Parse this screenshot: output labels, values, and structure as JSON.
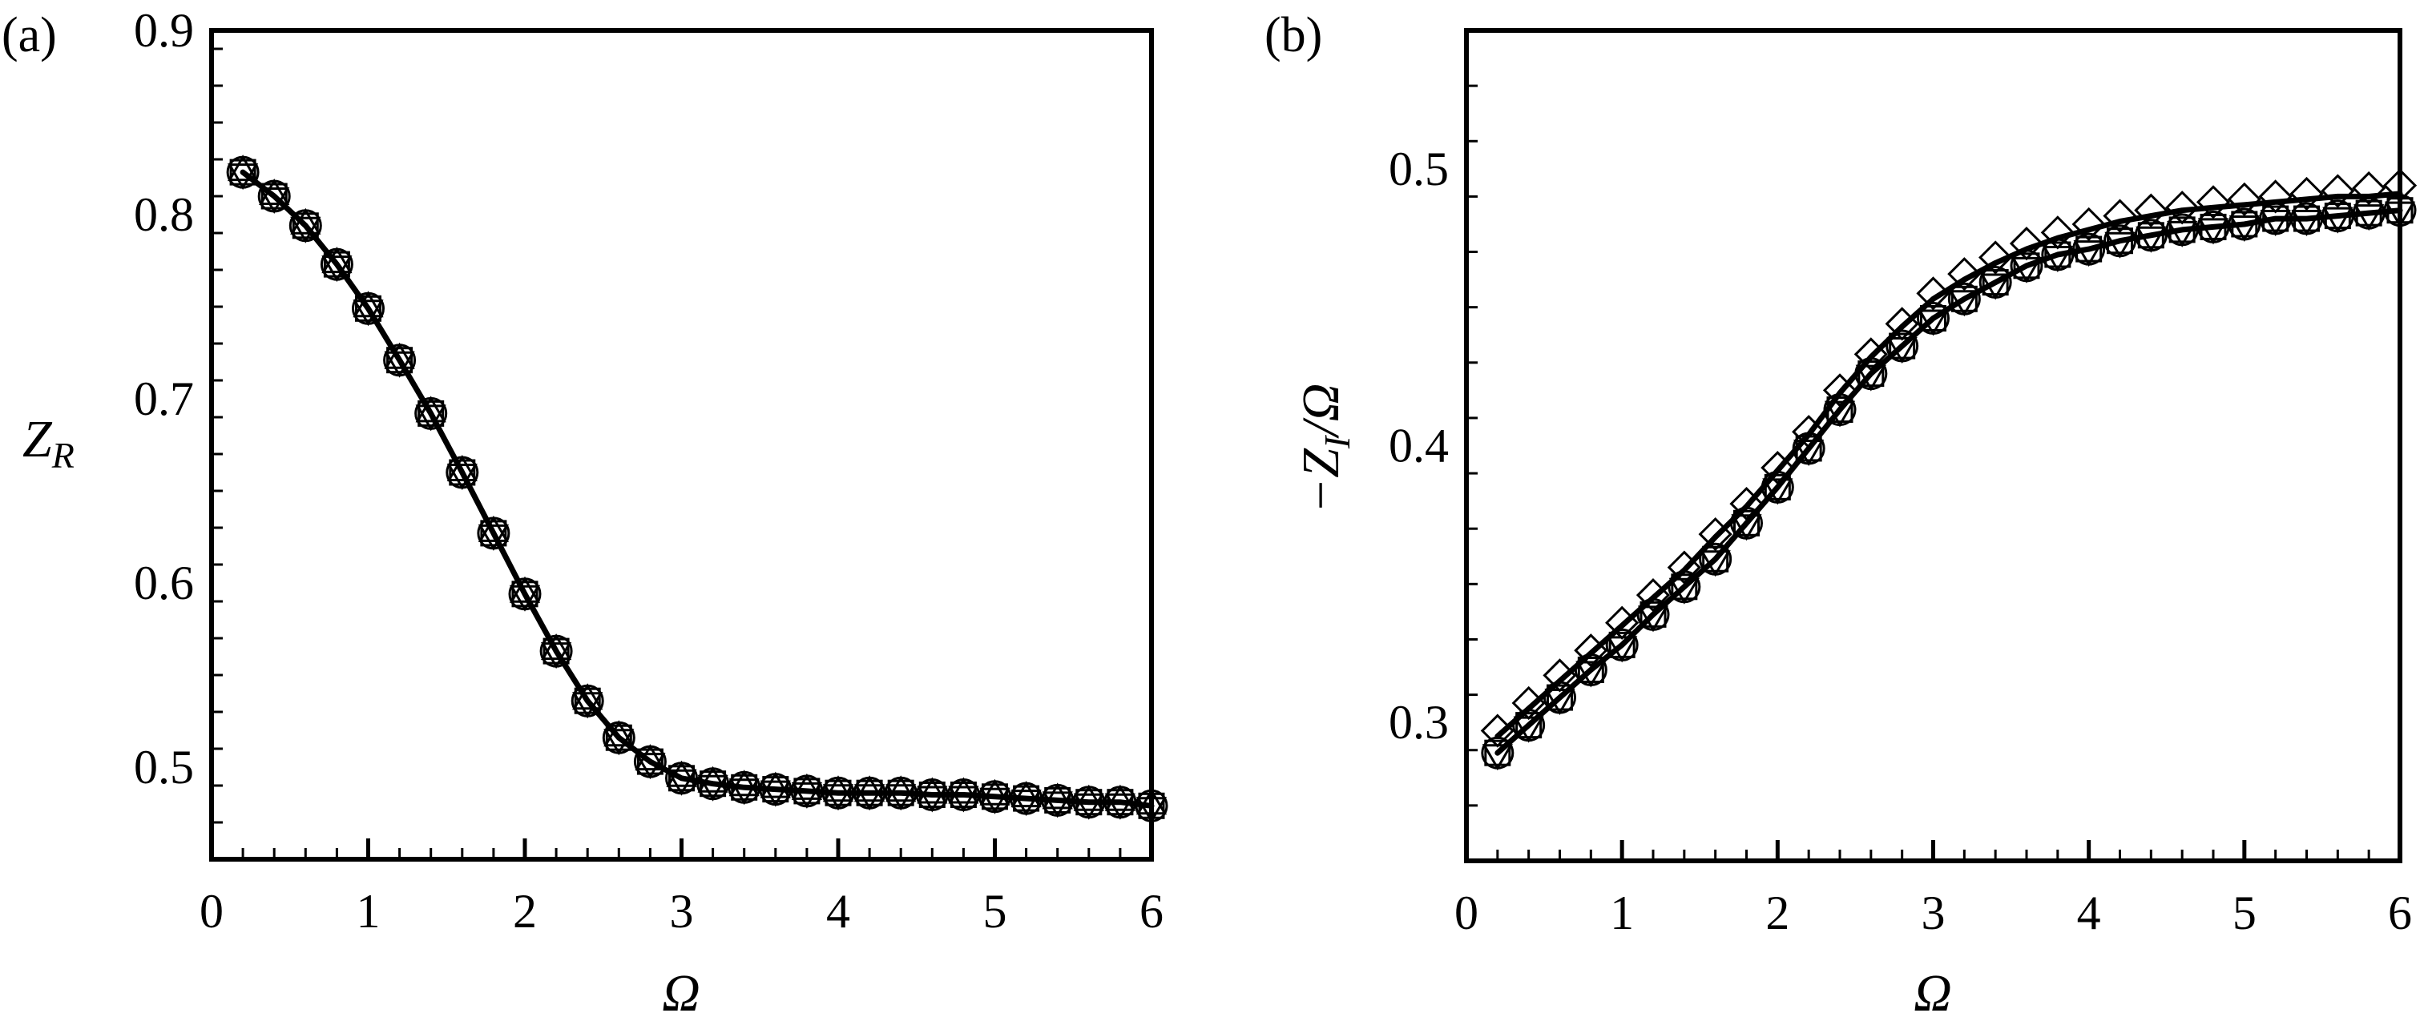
{
  "chart_data": [
    {
      "type": "line",
      "panel_label": "(a)",
      "xlabel": "Ω",
      "ylabel": "Z",
      "ylabel_sub": "R",
      "xlim": [
        0,
        6
      ],
      "ylim": [
        0.45,
        0.9
      ],
      "xticks": [
        "0",
        "1",
        "2",
        "3",
        "4",
        "5",
        "6"
      ],
      "yticks": [
        "0.5",
        "0.6",
        "0.7",
        "0.8",
        "0.9"
      ],
      "x_minor_step": 0.2,
      "y_minor_step": 0.02,
      "grid": false,
      "x": [
        0.2,
        0.4,
        0.6,
        0.8,
        1.0,
        1.2,
        1.4,
        1.6,
        1.8,
        2.0,
        2.2,
        2.4,
        2.6,
        2.8,
        3.0,
        3.2,
        3.4,
        3.6,
        3.8,
        4.0,
        4.2,
        4.4,
        4.6,
        4.8,
        5.0,
        5.2,
        5.4,
        5.6,
        5.8,
        6.0
      ],
      "series": [
        {
          "style": "line",
          "color": "#000000",
          "values": [
            0.823,
            0.81,
            0.794,
            0.773,
            0.749,
            0.721,
            0.692,
            0.66,
            0.627,
            0.594,
            0.563,
            0.536,
            0.516,
            0.503,
            0.494,
            0.491,
            0.489,
            0.488,
            0.487,
            0.486,
            0.486,
            0.486,
            0.485,
            0.485,
            0.484,
            0.483,
            0.482,
            0.481,
            0.481,
            0.479
          ]
        },
        {
          "style": "markers",
          "markers": [
            "circle",
            "square",
            "triangle-up",
            "triangle-down"
          ],
          "color": "#000000",
          "values": [
            0.823,
            0.81,
            0.794,
            0.773,
            0.749,
            0.721,
            0.692,
            0.66,
            0.627,
            0.594,
            0.563,
            0.536,
            0.516,
            0.503,
            0.494,
            0.491,
            0.489,
            0.488,
            0.487,
            0.486,
            0.486,
            0.486,
            0.485,
            0.485,
            0.484,
            0.483,
            0.482,
            0.481,
            0.481,
            0.479
          ]
        }
      ]
    },
    {
      "type": "line",
      "panel_label": "(b)",
      "xlabel": "Ω",
      "ylabel": "−Z",
      "ylabel_sub": "I",
      "ylabel_tail": "/Ω",
      "xlim": [
        0,
        6
      ],
      "ylim": [
        0.25,
        0.55
      ],
      "xticks": [
        "0",
        "1",
        "2",
        "3",
        "4",
        "5",
        "6"
      ],
      "yticks": [
        "0.3",
        "0.4",
        "0.5"
      ],
      "x_minor_step": 0.2,
      "y_minor_step": 0.02,
      "grid": false,
      "x": [
        0.2,
        0.4,
        0.6,
        0.8,
        1.0,
        1.2,
        1.4,
        1.6,
        1.8,
        2.0,
        2.2,
        2.4,
        2.6,
        2.8,
        3.0,
        3.2,
        3.4,
        3.6,
        3.8,
        4.0,
        4.2,
        4.4,
        4.6,
        4.8,
        5.0,
        5.2,
        5.4,
        5.6,
        5.8,
        6.0
      ],
      "series": [
        {
          "style": "line",
          "color": "#000000",
          "values": [
            0.289,
            0.299,
            0.309,
            0.319,
            0.328,
            0.339,
            0.349,
            0.359,
            0.372,
            0.385,
            0.399,
            0.413,
            0.426,
            0.436,
            0.446,
            0.453,
            0.459,
            0.465,
            0.469,
            0.471,
            0.474,
            0.476,
            0.478,
            0.479,
            0.48,
            0.482,
            0.482,
            0.483,
            0.484,
            0.485
          ]
        },
        {
          "style": "markers",
          "markers": [
            "circle",
            "square",
            "triangle-down"
          ],
          "color": "#000000",
          "values": [
            0.289,
            0.299,
            0.309,
            0.319,
            0.328,
            0.339,
            0.349,
            0.359,
            0.372,
            0.385,
            0.399,
            0.413,
            0.426,
            0.436,
            0.446,
            0.453,
            0.459,
            0.465,
            0.469,
            0.471,
            0.474,
            0.476,
            0.478,
            0.479,
            0.48,
            0.482,
            0.482,
            0.483,
            0.484,
            0.485
          ]
        },
        {
          "style": "line",
          "color": "#000000",
          "values": [
            0.295,
            0.305,
            0.315,
            0.325,
            0.335,
            0.345,
            0.355,
            0.367,
            0.378,
            0.391,
            0.404,
            0.419,
            0.432,
            0.443,
            0.453,
            0.46,
            0.466,
            0.471,
            0.475,
            0.478,
            0.481,
            0.483,
            0.485,
            0.486,
            0.487,
            0.488,
            0.489,
            0.49,
            0.49,
            0.491
          ]
        },
        {
          "style": "markers",
          "markers": [
            "diamond"
          ],
          "color": "#000000",
          "values": [
            0.297,
            0.307,
            0.317,
            0.326,
            0.336,
            0.346,
            0.356,
            0.368,
            0.379,
            0.392,
            0.405,
            0.42,
            0.433,
            0.444,
            0.455,
            0.462,
            0.468,
            0.473,
            0.477,
            0.48,
            0.483,
            0.485,
            0.486,
            0.488,
            0.489,
            0.49,
            0.491,
            0.492,
            0.493,
            0.494
          ]
        }
      ]
    }
  ]
}
